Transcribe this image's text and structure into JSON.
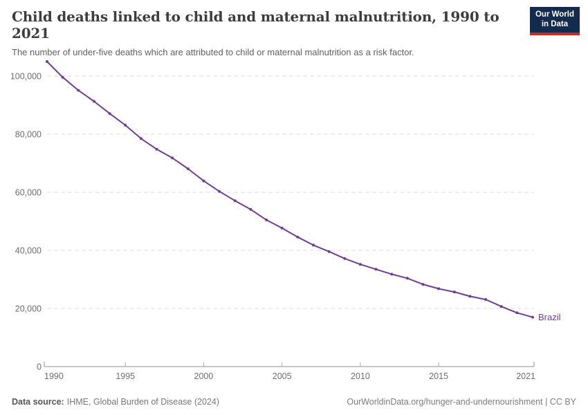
{
  "header": {
    "title": "Child deaths linked to child and maternal malnutrition, 1990 to 2021",
    "subtitle": "The number of under-five deaths which are attributed to child or maternal malnutrition as a risk factor.",
    "logo": {
      "line1": "Our World",
      "line2": "in Data"
    }
  },
  "colors": {
    "line": "#6d3e91",
    "logo_bg": "#122b4e",
    "logo_accent": "#c62a20",
    "gridline": "#dedede",
    "axis": "#8f8f8f",
    "tick_label": "#6e6e6e"
  },
  "chart_data": {
    "type": "line",
    "title": "Child deaths linked to child and maternal malnutrition, 1990 to 2021",
    "subtitle": "The number of under-five deaths which are attributed to child or maternal malnutrition as a risk factor.",
    "xlabel": "",
    "ylabel": "",
    "grid": "horizontal-dashed",
    "legend_position": "end-of-line-label",
    "xlim": [
      1990,
      2021
    ],
    "ylim": [
      0,
      106000
    ],
    "xticks": [
      1990,
      1995,
      2000,
      2005,
      2010,
      2015,
      2021
    ],
    "yticks": [
      0,
      20000,
      40000,
      60000,
      80000,
      100000
    ],
    "ytick_labels": [
      "0",
      "20,000",
      "40,000",
      "60,000",
      "80,000",
      "100,000"
    ],
    "x": [
      1990,
      1991,
      1992,
      1993,
      1994,
      1995,
      1996,
      1997,
      1998,
      1999,
      2000,
      2001,
      2002,
      2003,
      2004,
      2005,
      2006,
      2007,
      2008,
      2009,
      2010,
      2011,
      2012,
      2013,
      2014,
      2015,
      2016,
      2017,
      2018,
      2019,
      2020,
      2021
    ],
    "series": [
      {
        "name": "Brazil",
        "color": "#6d3e91",
        "values": [
          105000,
          99600,
          95100,
          91300,
          87100,
          83100,
          78500,
          74800,
          71800,
          68100,
          63900,
          60300,
          57100,
          54100,
          50500,
          47700,
          44600,
          41800,
          39600,
          37200,
          35200,
          33500,
          31800,
          30400,
          28300,
          26800,
          25700,
          24200,
          23100,
          20700,
          18500,
          17000
        ]
      }
    ]
  },
  "footer": {
    "source_label": "Data source:",
    "source": "IHME, Global Burden of Disease (2024)",
    "right_text": "OurWorldinData.org/hunger-and-undernourishment | CC BY"
  }
}
